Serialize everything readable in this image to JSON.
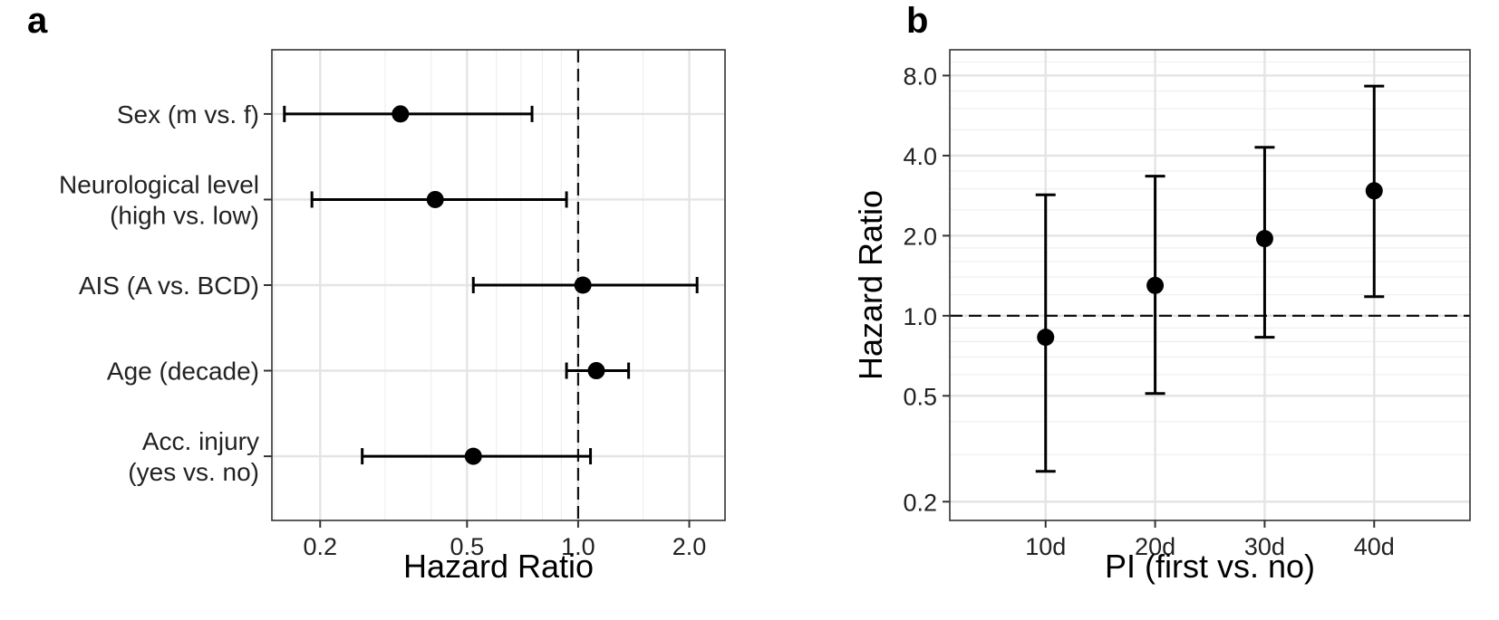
{
  "chart_data": [
    {
      "panel": "a",
      "type": "scatter",
      "orientation": "horizontal",
      "xscale": "log",
      "xlabel": "Hazard Ratio",
      "ylabel": "",
      "xlim": [
        0.148,
        2.5
      ],
      "xticks": [
        {
          "value": 0.2,
          "label": "0.2"
        },
        {
          "value": 0.5,
          "label": "0.5"
        },
        {
          "value": 1.0,
          "label": "1.0"
        },
        {
          "value": 2.0,
          "label": "2.0"
        }
      ],
      "reference_line": 1.0,
      "grid": true,
      "categories": [
        {
          "lines": [
            "Sex (m vs. f)"
          ],
          "hr": 0.33,
          "lower": 0.16,
          "upper": 0.75
        },
        {
          "lines": [
            "Neurological level",
            "(high vs. low)"
          ],
          "hr": 0.41,
          "lower": 0.19,
          "upper": 0.93
        },
        {
          "lines": [
            "AIS (A vs. BCD)"
          ],
          "hr": 1.03,
          "lower": 0.52,
          "upper": 2.1
        },
        {
          "lines": [
            "Age (decade)"
          ],
          "hr": 1.12,
          "lower": 0.93,
          "upper": 1.37
        },
        {
          "lines": [
            "Acc. injury",
            "(yes vs. no)"
          ],
          "hr": 0.52,
          "lower": 0.26,
          "upper": 1.08
        }
      ]
    },
    {
      "panel": "b",
      "type": "scatter",
      "yscale": "log",
      "xlabel": "PI (first vs. no)",
      "ylabel": "Hazard Ratio",
      "ylim": [
        0.17,
        10.0
      ],
      "yticks": [
        {
          "value": 0.2,
          "label": "0.2"
        },
        {
          "value": 0.5,
          "label": "0.5"
        },
        {
          "value": 1.0,
          "label": "1.0"
        },
        {
          "value": 2.0,
          "label": "2.0"
        },
        {
          "value": 4.0,
          "label": "4.0"
        },
        {
          "value": 8.0,
          "label": "8.0"
        }
      ],
      "reference_line": 1.0,
      "grid": true,
      "categories": [
        "10d",
        "20d",
        "30d",
        "40d"
      ],
      "hr": [
        0.83,
        1.3,
        1.95,
        2.95
      ],
      "lower": [
        0.26,
        0.51,
        0.83,
        1.18
      ],
      "upper": [
        2.85,
        3.35,
        4.3,
        7.3
      ]
    }
  ]
}
